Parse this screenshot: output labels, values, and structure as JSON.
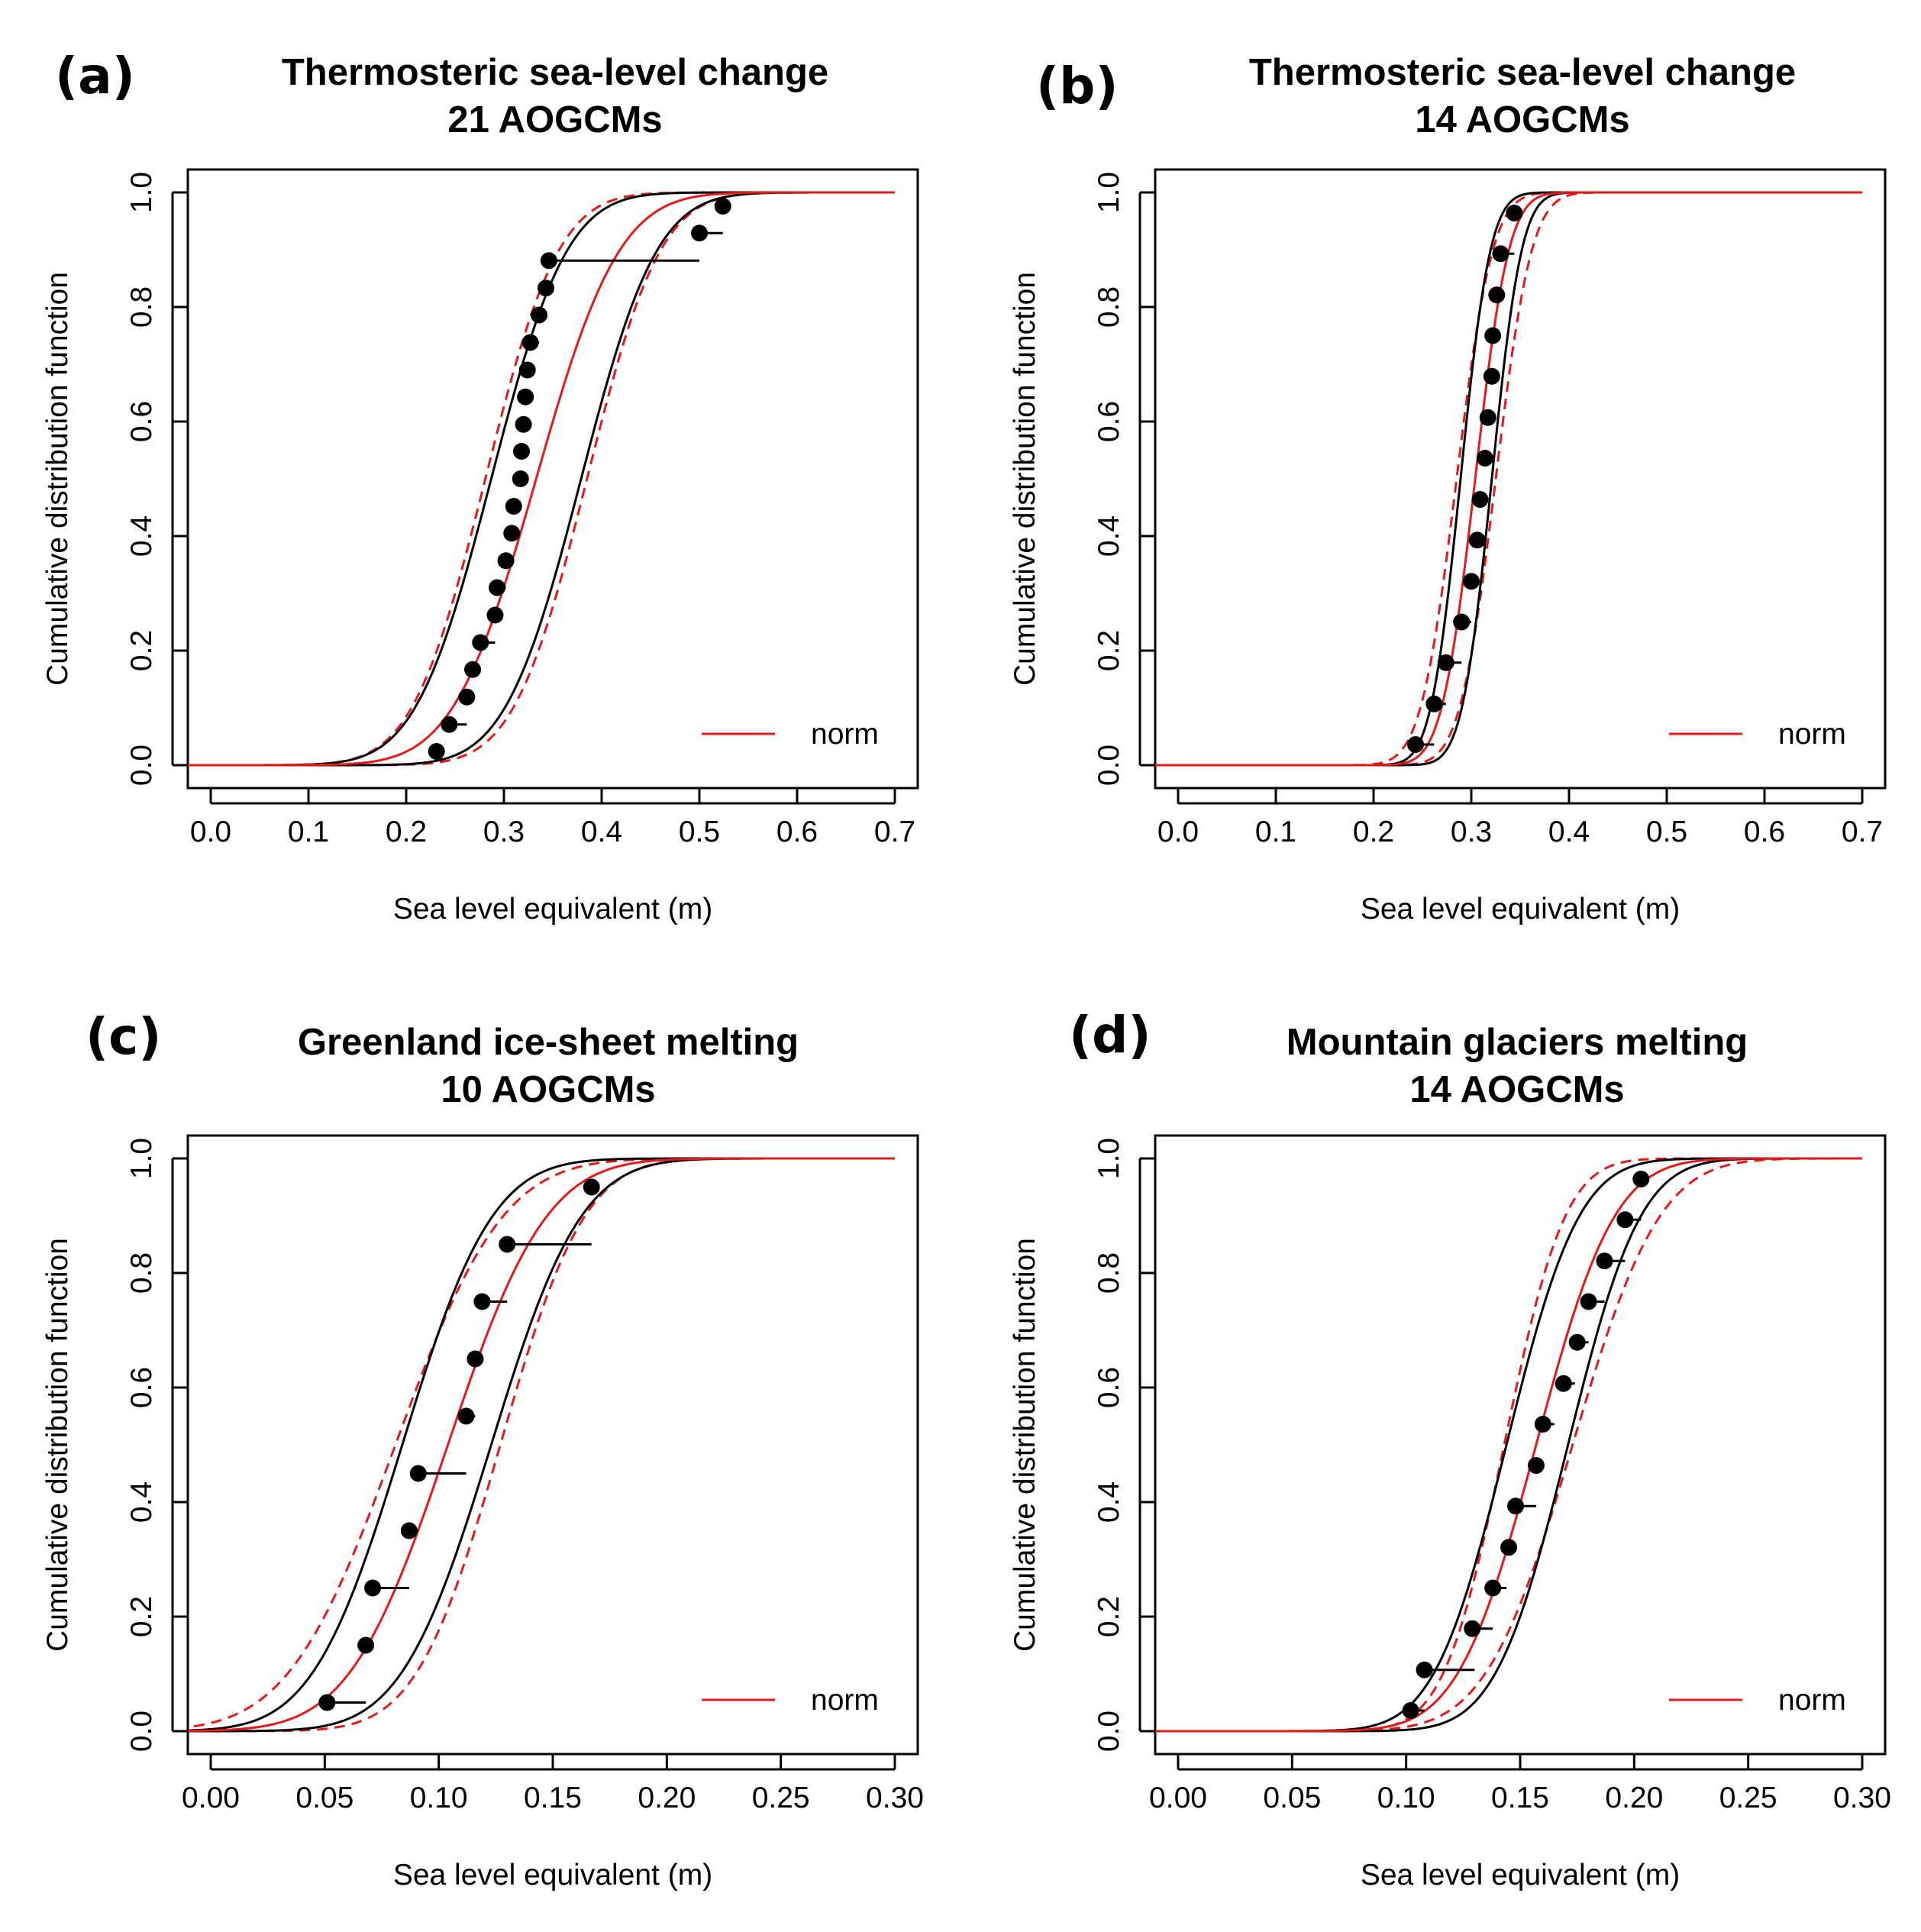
{
  "figure": {
    "panels": [
      {
        "letter": "(a)",
        "title_line1": "Thermosteric sea-level change",
        "title_line2": "21 AOGCMs"
      },
      {
        "letter": "(b)",
        "title_line1": "Thermosteric sea-level change",
        "title_line2": "14 AOGCMs"
      },
      {
        "letter": "(c)",
        "title_line1": "Greenland ice-sheet melting",
        "title_line2": "10 AOGCMs"
      },
      {
        "letter": "(d)",
        "title_line1": "Mountain glaciers melting",
        "title_line2": "14 AOGCMs"
      }
    ]
  },
  "colors": {
    "fit": "#e31a1c",
    "bounds": "#000000",
    "points": "#000000",
    "frame": "#000000"
  },
  "chart_data": [
    {
      "type": "scatter",
      "title": "Thermosteric sea-level change 21 AOGCMs",
      "xlabel": "Sea level equivalent (m)",
      "ylabel": "Cumulative distribution function",
      "xlim": [
        0.0,
        0.7
      ],
      "ylim": [
        0.0,
        1.0
      ],
      "xticks": [
        "0.0",
        "0.1",
        "0.2",
        "0.3",
        "0.4",
        "0.5",
        "0.6",
        "0.7"
      ],
      "yticks": [
        "0.0",
        "0.2",
        "0.4",
        "0.6",
        "0.8",
        "1.0"
      ],
      "legend": {
        "label": "norm",
        "position": "bottom-right"
      },
      "grid": false,
      "points": [
        {
          "x": 0.231,
          "y": 0.024,
          "xerr_to": 0.236
        },
        {
          "x": 0.244,
          "y": 0.071,
          "xerr_to": 0.262
        },
        {
          "x": 0.262,
          "y": 0.119,
          "xerr_to": 0.268
        },
        {
          "x": 0.268,
          "y": 0.167,
          "xerr_to": 0.276
        },
        {
          "x": 0.276,
          "y": 0.214,
          "xerr_to": 0.291
        },
        {
          "x": 0.291,
          "y": 0.262,
          "xerr_to": 0.293
        },
        {
          "x": 0.293,
          "y": 0.31,
          "xerr_to": 0.302
        },
        {
          "x": 0.302,
          "y": 0.357,
          "xerr_to": 0.308
        },
        {
          "x": 0.308,
          "y": 0.405,
          "xerr_to": 0.31
        },
        {
          "x": 0.31,
          "y": 0.452,
          "xerr_to": 0.317
        },
        {
          "x": 0.317,
          "y": 0.5,
          "xerr_to": 0.318
        },
        {
          "x": 0.318,
          "y": 0.548,
          "xerr_to": 0.32
        },
        {
          "x": 0.32,
          "y": 0.595,
          "xerr_to": 0.322
        },
        {
          "x": 0.322,
          "y": 0.643,
          "xerr_to": 0.324
        },
        {
          "x": 0.324,
          "y": 0.69,
          "xerr_to": 0.327
        },
        {
          "x": 0.327,
          "y": 0.738,
          "xerr_to": 0.336
        },
        {
          "x": 0.336,
          "y": 0.786,
          "xerr_to": 0.343
        },
        {
          "x": 0.343,
          "y": 0.833,
          "xerr_to": 0.346
        },
        {
          "x": 0.346,
          "y": 0.881,
          "xerr_to": 0.5
        },
        {
          "x": 0.5,
          "y": 0.929,
          "xerr_to": 0.524
        },
        {
          "x": 0.524,
          "y": 0.976,
          "xerr_to": 0.53
        }
      ],
      "normal_fit": {
        "mean": 0.333,
        "sd": 0.067
      },
      "lower_band": {
        "mean": 0.287,
        "sd": 0.061
      },
      "upper_band": {
        "mean": 0.379,
        "sd": 0.061
      },
      "lower_band_dashed": {
        "mean": 0.281,
        "sd": 0.059
      },
      "upper_band_dashed": {
        "mean": 0.385,
        "sd": 0.059
      }
    },
    {
      "type": "scatter",
      "title": "Thermosteric sea-level change 14 AOGCMs",
      "xlabel": "Sea level equivalent (m)",
      "ylabel": "Cumulative distribution function",
      "xlim": [
        0.0,
        0.7
      ],
      "ylim": [
        0.0,
        1.0
      ],
      "xticks": [
        "0.0",
        "0.1",
        "0.2",
        "0.3",
        "0.4",
        "0.5",
        "0.6",
        "0.7"
      ],
      "yticks": [
        "0.0",
        "0.2",
        "0.4",
        "0.6",
        "0.8",
        "1.0"
      ],
      "legend": {
        "label": "norm",
        "position": "bottom-right"
      },
      "grid": false,
      "points": [
        {
          "x": 0.243,
          "y": 0.036,
          "xerr_to": 0.262
        },
        {
          "x": 0.262,
          "y": 0.107,
          "xerr_to": 0.274
        },
        {
          "x": 0.274,
          "y": 0.179,
          "xerr_to": 0.29
        },
        {
          "x": 0.29,
          "y": 0.25,
          "xerr_to": 0.3
        },
        {
          "x": 0.3,
          "y": 0.321,
          "xerr_to": 0.306
        },
        {
          "x": 0.306,
          "y": 0.393,
          "xerr_to": 0.309
        },
        {
          "x": 0.309,
          "y": 0.464,
          "xerr_to": 0.314
        },
        {
          "x": 0.314,
          "y": 0.536,
          "xerr_to": 0.317
        },
        {
          "x": 0.317,
          "y": 0.607,
          "xerr_to": 0.321
        },
        {
          "x": 0.321,
          "y": 0.679,
          "xerr_to": 0.322
        },
        {
          "x": 0.322,
          "y": 0.75,
          "xerr_to": 0.326
        },
        {
          "x": 0.326,
          "y": 0.821,
          "xerr_to": 0.33
        },
        {
          "x": 0.33,
          "y": 0.893,
          "xerr_to": 0.344
        },
        {
          "x": 0.344,
          "y": 0.964,
          "xerr_to": 0.348
        }
      ],
      "normal_fit": {
        "mean": 0.304,
        "sd": 0.027
      },
      "lower_band": {
        "mean": 0.289,
        "sd": 0.024
      },
      "upper_band": {
        "mean": 0.321,
        "sd": 0.024
      },
      "lower_band_dashed": {
        "mean": 0.285,
        "sd": 0.029
      },
      "upper_band_dashed": {
        "mean": 0.325,
        "sd": 0.029
      }
    },
    {
      "type": "scatter",
      "title": "Greenland ice-sheet melting 10 AOGCMs",
      "xlabel": "Sea level equivalent (m)",
      "ylabel": "Cumulative distribution function",
      "xlim": [
        0.0,
        0.3
      ],
      "ylim": [
        0.0,
        1.0
      ],
      "xticks": [
        "0.00",
        "0.05",
        "0.10",
        "0.15",
        "0.20",
        "0.25",
        "0.30"
      ],
      "yticks": [
        "0.0",
        "0.2",
        "0.4",
        "0.6",
        "0.8",
        "1.0"
      ],
      "legend": {
        "label": "norm",
        "position": "bottom-right"
      },
      "grid": false,
      "points": [
        {
          "x": 0.051,
          "y": 0.05,
          "xerr_to": 0.068
        },
        {
          "x": 0.068,
          "y": 0.15,
          "xerr_to": 0.069
        },
        {
          "x": 0.071,
          "y": 0.25,
          "xerr_to": 0.087
        },
        {
          "x": 0.087,
          "y": 0.35,
          "xerr_to": 0.091
        },
        {
          "x": 0.091,
          "y": 0.45,
          "xerr_to": 0.112
        },
        {
          "x": 0.112,
          "y": 0.55,
          "xerr_to": 0.116
        },
        {
          "x": 0.116,
          "y": 0.65,
          "xerr_to": 0.117
        },
        {
          "x": 0.119,
          "y": 0.75,
          "xerr_to": 0.13
        },
        {
          "x": 0.13,
          "y": 0.85,
          "xerr_to": 0.167
        },
        {
          "x": 0.167,
          "y": 0.95,
          "xerr_to": 0.168
        }
      ],
      "normal_fit": {
        "mean": 0.104,
        "sd": 0.034
      },
      "lower_band": {
        "mean": 0.084,
        "sd": 0.031
      },
      "upper_band": {
        "mean": 0.123,
        "sd": 0.031
      },
      "lower_band_dashed": {
        "mean": 0.081,
        "sd": 0.037
      },
      "upper_band_dashed": {
        "mean": 0.127,
        "sd": 0.029
      }
    },
    {
      "type": "scatter",
      "title": "Mountain glaciers melting 14 AOGCMs",
      "xlabel": "Sea level equivalent (m)",
      "ylabel": "Cumulative distribution function",
      "xlim": [
        0.0,
        0.3
      ],
      "ylim": [
        0.0,
        1.0
      ],
      "xticks": [
        "0.00",
        "0.05",
        "0.10",
        "0.15",
        "0.20",
        "0.25",
        "0.30"
      ],
      "yticks": [
        "0.0",
        "0.2",
        "0.4",
        "0.6",
        "0.8",
        "1.0"
      ],
      "legend": {
        "label": "norm",
        "position": "bottom-right"
      },
      "grid": false,
      "points": [
        {
          "x": 0.102,
          "y": 0.036,
          "xerr_to": 0.108
        },
        {
          "x": 0.108,
          "y": 0.107,
          "xerr_to": 0.13
        },
        {
          "x": 0.129,
          "y": 0.179,
          "xerr_to": 0.138
        },
        {
          "x": 0.138,
          "y": 0.25,
          "xerr_to": 0.144
        },
        {
          "x": 0.145,
          "y": 0.321,
          "xerr_to": 0.148
        },
        {
          "x": 0.148,
          "y": 0.393,
          "xerr_to": 0.157
        },
        {
          "x": 0.157,
          "y": 0.464,
          "xerr_to": 0.16
        },
        {
          "x": 0.16,
          "y": 0.536,
          "xerr_to": 0.165
        },
        {
          "x": 0.169,
          "y": 0.607,
          "xerr_to": 0.174
        },
        {
          "x": 0.175,
          "y": 0.679,
          "xerr_to": 0.18
        },
        {
          "x": 0.18,
          "y": 0.75,
          "xerr_to": 0.187
        },
        {
          "x": 0.187,
          "y": 0.821,
          "xerr_to": 0.196
        },
        {
          "x": 0.196,
          "y": 0.893,
          "xerr_to": 0.203
        },
        {
          "x": 0.203,
          "y": 0.964,
          "xerr_to": 0.204
        }
      ],
      "normal_fit": {
        "mean": 0.157,
        "sd": 0.027
      },
      "lower_band": {
        "mean": 0.144,
        "sd": 0.025
      },
      "upper_band": {
        "mean": 0.171,
        "sd": 0.025
      },
      "lower_band_dashed": {
        "mean": 0.143,
        "sd": 0.021
      },
      "upper_band_dashed": {
        "mean": 0.173,
        "sd": 0.03
      }
    }
  ]
}
